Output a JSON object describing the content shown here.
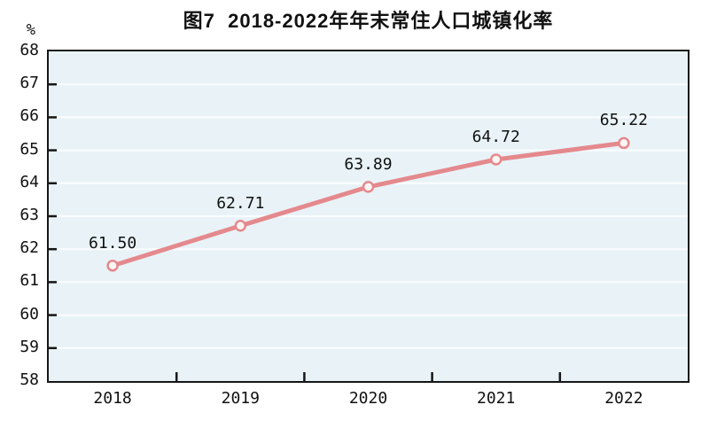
{
  "figure": {
    "title": "图7  2018-2022年年末常住人口城镇化率",
    "unit_label": "%"
  },
  "colors": {
    "line": "#e4898d",
    "marker_fill": "#fdf5f3",
    "marker_stroke": "#e4898d",
    "plot_background": "#e9f3f7",
    "gridline": "#fafdff",
    "axis": "#161616",
    "text": "#111111"
  },
  "chart_data": {
    "type": "line",
    "title": "图7  2018-2022年年末常住人口城镇化率",
    "categories": [
      "2018",
      "2019",
      "2020",
      "2021",
      "2022"
    ],
    "values": [
      61.5,
      62.71,
      63.89,
      64.72,
      65.22
    ],
    "point_labels": [
      "61.50",
      "62.71",
      "63.89",
      "64.72",
      "65.22"
    ],
    "xlabel": "",
    "ylabel": "%",
    "ylim": [
      58,
      68
    ],
    "ytick_step": 1,
    "yticks": [
      58,
      59,
      60,
      61,
      62,
      63,
      64,
      65,
      66,
      67,
      68
    ],
    "grid": true,
    "legend": false
  }
}
